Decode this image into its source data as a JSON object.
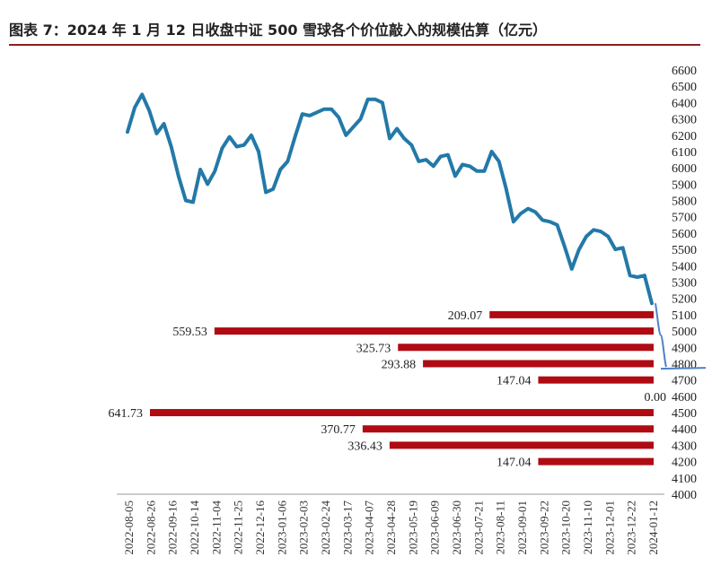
{
  "title": "图表 7：2024 年 1 月 12 日收盘中证 500 雪球各个价位敲入的规模估算（亿元）",
  "colors": {
    "line": "#2379a8",
    "bar": "#b00a13",
    "annot": "#4f80c5",
    "rule": "#8c2020"
  },
  "chart_data": {
    "type": "line+bar",
    "yaxis": {
      "min": 4000,
      "max": 6600,
      "step": 100,
      "position": "right",
      "ticks": [
        "6600",
        "6500",
        "6400",
        "6300",
        "6200",
        "6100",
        "6000",
        "5900",
        "5800",
        "5700",
        "5600",
        "5500",
        "5400",
        "5300",
        "5200",
        "5100",
        "5000",
        "4900",
        "4800",
        "4700",
        "4600",
        "4500",
        "4400",
        "4300",
        "4200",
        "4100",
        "4000"
      ]
    },
    "xticks": [
      "2022-08-05",
      "2022-08-26",
      "2022-09-16",
      "2022-10-14",
      "2022-11-04",
      "2022-11-25",
      "2022-12-16",
      "2023-01-06",
      "2023-02-03",
      "2023-02-24",
      "2023-03-17",
      "2023-04-07",
      "2023-04-28",
      "2023-05-19",
      "2023-06-09",
      "2023-06-30",
      "2023-07-21",
      "2023-08-11",
      "2023-09-01",
      "2023-09-22",
      "2023-10-20",
      "2023-11-10",
      "2023-12-01",
      "2023-12-22",
      "2024-01-12"
    ],
    "line": {
      "values": [
        6220,
        6370,
        6450,
        6350,
        6210,
        6270,
        6130,
        5950,
        5800,
        5790,
        5990,
        5900,
        5980,
        6120,
        6190,
        6130,
        6140,
        6200,
        6100,
        5850,
        5870,
        5990,
        6040,
        6190,
        6330,
        6320,
        6340,
        6360,
        6360,
        6310,
        6200,
        6250,
        6300,
        6420,
        6420,
        6400,
        6180,
        6240,
        6180,
        6140,
        6040,
        6050,
        6010,
        6070,
        6080,
        5950,
        6020,
        6010,
        5980,
        5980,
        6100,
        6040,
        5870,
        5670,
        5720,
        5750,
        5730,
        5680,
        5670,
        5650,
        5520,
        5380,
        5500,
        5580,
        5620,
        5610,
        5580,
        5500,
        5510,
        5340,
        5330,
        5340,
        5170
      ]
    },
    "bars": [
      {
        "level": 5100,
        "value": 209.07,
        "label": "209.07"
      },
      {
        "level": 5000,
        "value": 559.53,
        "label": "559.53"
      },
      {
        "level": 4900,
        "value": 325.73,
        "label": "325.73"
      },
      {
        "level": 4800,
        "value": 293.88,
        "label": "293.88"
      },
      {
        "level": 4700,
        "value": 147.04,
        "label": "147.04"
      },
      {
        "level": 4600,
        "value": 0.0,
        "label": "0.00"
      },
      {
        "level": 4500,
        "value": 641.73,
        "label": "641.73"
      },
      {
        "level": 4400,
        "value": 370.77,
        "label": "370.77"
      },
      {
        "level": 4300,
        "value": 336.43,
        "label": "336.43"
      },
      {
        "level": 4200,
        "value": 147.04,
        "label": "147.04"
      }
    ],
    "annotation": {
      "description": "hand-drawn blue line from last close down to ~4780 with horizontal stroke",
      "from": 5170,
      "to": 4780
    }
  }
}
